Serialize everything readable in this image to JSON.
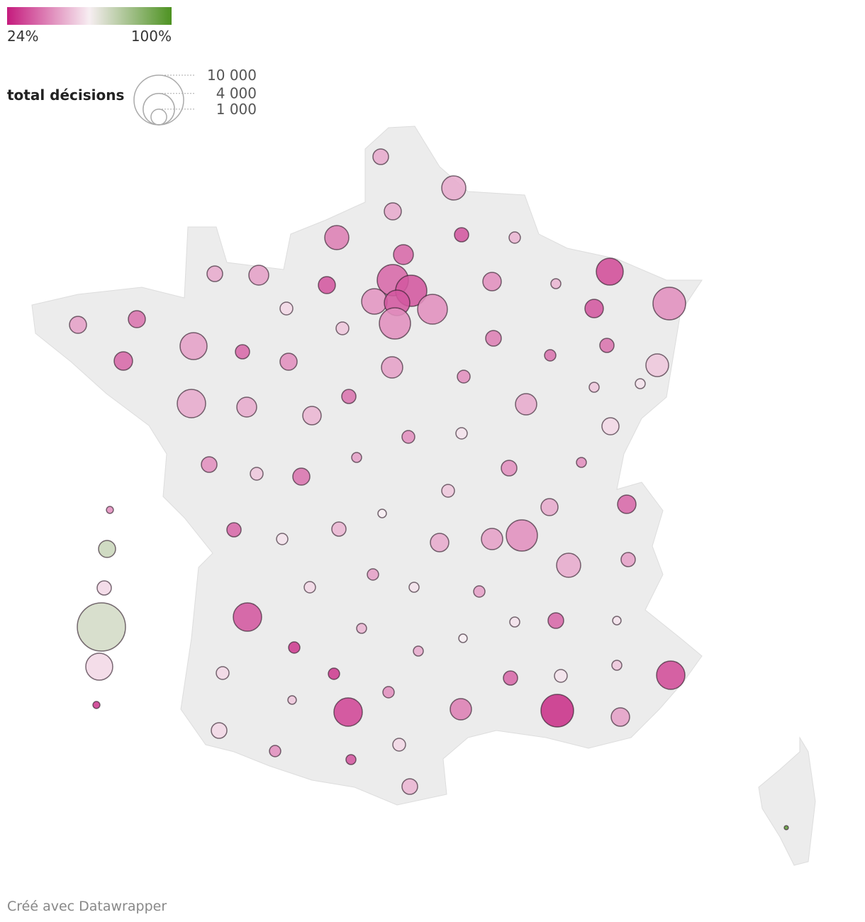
{
  "chart_data": {
    "type": "bubble-map",
    "color_legend": {
      "ticks": [
        {
          "value": 24,
          "label": "24%"
        },
        {
          "value": 100,
          "label": "100%"
        }
      ],
      "colors": [
        "#c51b7d",
        "#f7eef2",
        "#4d9221"
      ]
    },
    "size_legend": {
      "title": "total décisions",
      "ticks": [
        {
          "value": 10000,
          "label": "10 000"
        },
        {
          "value": 4000,
          "label": "4 000"
        },
        {
          "value": 1000,
          "label": "1 000"
        }
      ]
    },
    "points": [
      {
        "total": 990,
        "pct": 50
      },
      {
        "total": 2360,
        "pct": 50
      },
      {
        "total": 1180,
        "pct": 50
      },
      {
        "total": 2360,
        "pct": 42
      },
      {
        "total": 820,
        "pct": 35
      },
      {
        "total": 520,
        "pct": 52
      },
      {
        "total": 1600,
        "pct": 38
      },
      {
        "total": 2950,
        "pct": 33
      },
      {
        "total": 990,
        "pct": 50
      },
      {
        "total": 1600,
        "pct": 48
      },
      {
        "total": 1180,
        "pct": 35
      },
      {
        "total": 1380,
        "pct": 45
      },
      {
        "total": 400,
        "pct": 52
      },
      {
        "total": 4320,
        "pct": 45
      },
      {
        "total": 3950,
        "pct": 38
      },
      {
        "total": 3950,
        "pct": 35
      },
      {
        "total": 2640,
        "pct": 46
      },
      {
        "total": 2640,
        "pct": 35
      },
      {
        "total": 3600,
        "pct": 45
      },
      {
        "total": 3950,
        "pct": 45
      },
      {
        "total": 660,
        "pct": 58
      },
      {
        "total": 1180,
        "pct": 48
      },
      {
        "total": 1180,
        "pct": 40
      },
      {
        "total": 1380,
        "pct": 35
      },
      {
        "total": 660,
        "pct": 55
      },
      {
        "total": 990,
        "pct": 42
      },
      {
        "total": 2950,
        "pct": 48
      },
      {
        "total": 820,
        "pct": 38
      },
      {
        "total": 1380,
        "pct": 38
      },
      {
        "total": 820,
        "pct": 40
      },
      {
        "total": 520,
        "pct": 40
      },
      {
        "total": 1180,
        "pct": 45
      },
      {
        "total": 1840,
        "pct": 48
      },
      {
        "total": 2090,
        "pct": 55
      },
      {
        "total": 660,
        "pct": 45
      },
      {
        "total": 400,
        "pct": 60
      },
      {
        "total": 400,
        "pct": 55
      },
      {
        "total": 3270,
        "pct": 50
      },
      {
        "total": 1600,
        "pct": 50
      },
      {
        "total": 820,
        "pct": 40
      },
      {
        "total": 1840,
        "pct": 50
      },
      {
        "total": 1380,
        "pct": 52
      },
      {
        "total": 1180,
        "pct": 58
      },
      {
        "total": 660,
        "pct": 45
      },
      {
        "total": 520,
        "pct": 60
      },
      {
        "total": 990,
        "pct": 45
      },
      {
        "total": 400,
        "pct": 48
      },
      {
        "total": 400,
        "pct": 45
      },
      {
        "total": 660,
        "pct": 55
      },
      {
        "total": 1180,
        "pct": 40
      },
      {
        "total": 990,
        "pct": 45
      },
      {
        "total": 660,
        "pct": 55
      },
      {
        "total": 1380,
        "pct": 38
      },
      {
        "total": 1180,
        "pct": 50
      },
      {
        "total": 290,
        "pct": 62
      },
      {
        "total": 820,
        "pct": 38
      },
      {
        "total": 820,
        "pct": 52
      },
      {
        "total": 520,
        "pct": 60
      },
      {
        "total": 1840,
        "pct": 48
      },
      {
        "total": 3950,
        "pct": 45
      },
      {
        "total": 1380,
        "pct": 50
      },
      {
        "total": 2360,
        "pct": 50
      },
      {
        "total": 820,
        "pct": 48
      },
      {
        "total": 520,
        "pct": 48
      },
      {
        "total": 520,
        "pct": 58
      },
      {
        "total": 400,
        "pct": 60
      },
      {
        "total": 520,
        "pct": 48
      },
      {
        "total": 3270,
        "pct": 35
      },
      {
        "total": 400,
        "pct": 52
      },
      {
        "total": 400,
        "pct": 60
      },
      {
        "total": 990,
        "pct": 38
      },
      {
        "total": 290,
        "pct": 60
      },
      {
        "total": 520,
        "pct": 30
      },
      {
        "total": 290,
        "pct": 62
      },
      {
        "total": 400,
        "pct": 50
      },
      {
        "total": 660,
        "pct": 58
      },
      {
        "total": 520,
        "pct": 30
      },
      {
        "total": 3270,
        "pct": 33
      },
      {
        "total": 820,
        "pct": 38
      },
      {
        "total": 660,
        "pct": 60
      },
      {
        "total": 400,
        "pct": 55
      },
      {
        "total": 520,
        "pct": 45
      },
      {
        "total": 290,
        "pct": 55
      },
      {
        "total": 3270,
        "pct": 32
      },
      {
        "total": 1840,
        "pct": 42
      },
      {
        "total": 4320,
        "pct": 28
      },
      {
        "total": 1380,
        "pct": 48
      },
      {
        "total": 990,
        "pct": 58
      },
      {
        "total": 660,
        "pct": 58
      },
      {
        "total": 520,
        "pct": 45
      },
      {
        "total": 400,
        "pct": 35
      },
      {
        "total": 990,
        "pct": 52
      },
      {
        "total": 70,
        "pct": 95
      },
      {
        "total": 200,
        "pct": 45
      },
      {
        "total": 1180,
        "pct": 72
      },
      {
        "total": 820,
        "pct": 58
      },
      {
        "total": 9440,
        "pct": 70
      },
      {
        "total": 2950,
        "pct": 58
      },
      {
        "total": 200,
        "pct": 30
      }
    ],
    "footer": "Créé avec Datawrapper"
  }
}
